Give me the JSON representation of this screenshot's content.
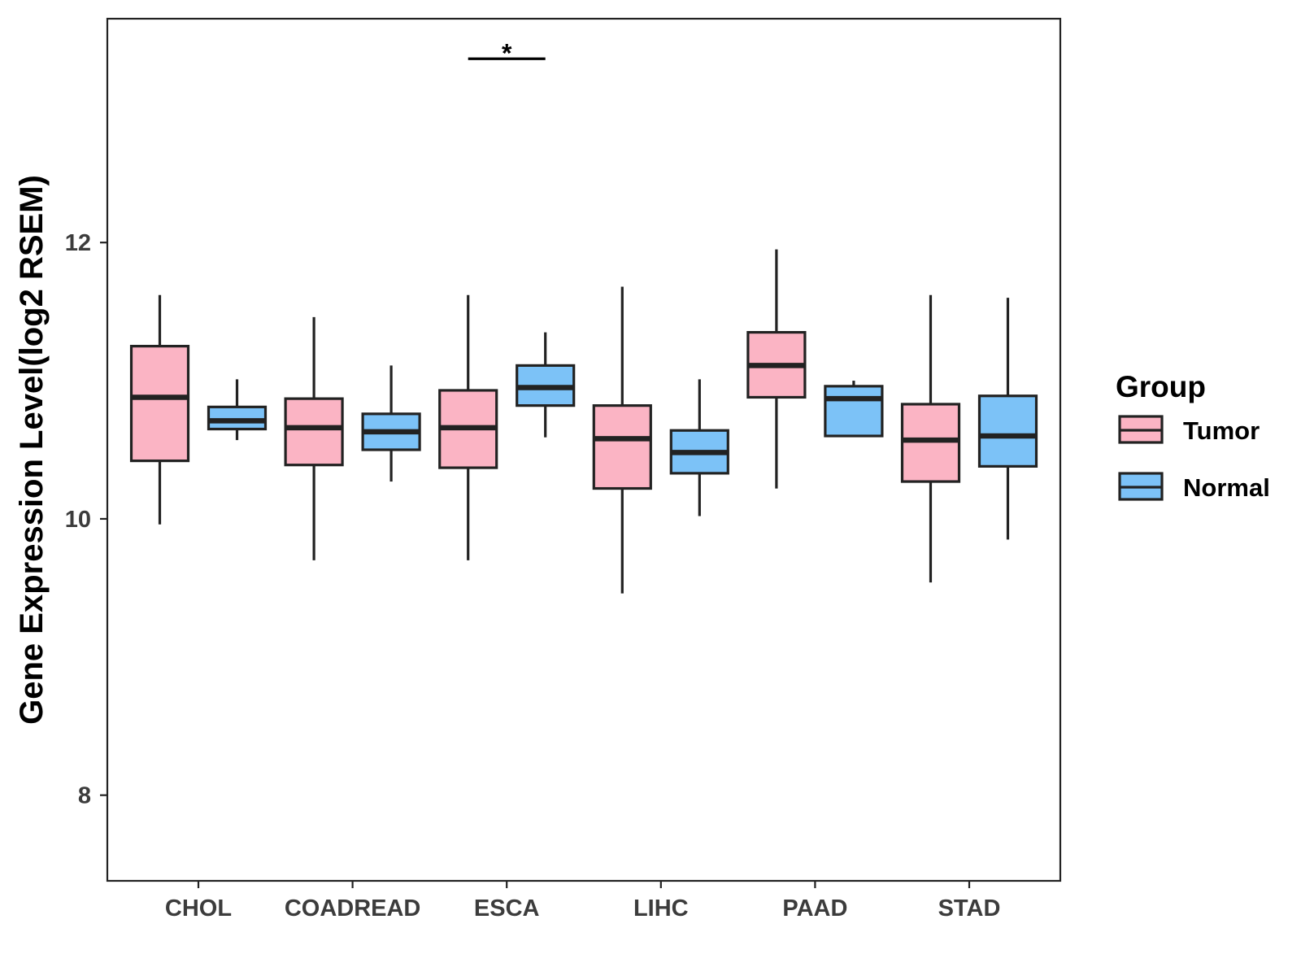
{
  "chart_data": {
    "type": "boxplot",
    "title": "",
    "xlabel": "",
    "ylabel": "Gene Expression Level(log2 RSEM)",
    "ylim": [
      7.38,
      13.62
    ],
    "yticks": [
      8,
      10,
      12
    ],
    "ytick_labels": [
      "8",
      "10",
      "12"
    ],
    "grid": false,
    "categories": [
      "CHOL",
      "COADREAD",
      "ESCA",
      "LIHC",
      "PAAD",
      "STAD"
    ],
    "legend": {
      "title": "Group",
      "position": "right",
      "entries": [
        "Tumor",
        "Normal"
      ]
    },
    "series": [
      {
        "name": "Tumor",
        "color": "#fbb4c4",
        "boxes": [
          {
            "category": "CHOL",
            "whisker_low": 9.96,
            "q1": 10.42,
            "median": 10.88,
            "q3": 11.25,
            "whisker_high": 11.62
          },
          {
            "category": "COADREAD",
            "whisker_low": 9.7,
            "q1": 10.39,
            "median": 10.66,
            "q3": 10.87,
            "whisker_high": 11.46
          },
          {
            "category": "ESCA",
            "whisker_low": 9.7,
            "q1": 10.37,
            "median": 10.66,
            "q3": 10.93,
            "whisker_high": 11.62
          },
          {
            "category": "LIHC",
            "whisker_low": 9.46,
            "q1": 10.22,
            "median": 10.58,
            "q3": 10.82,
            "whisker_high": 11.68
          },
          {
            "category": "PAAD",
            "whisker_low": 10.22,
            "q1": 10.88,
            "median": 11.11,
            "q3": 11.35,
            "whisker_high": 11.95
          },
          {
            "category": "STAD",
            "whisker_low": 9.54,
            "q1": 10.27,
            "median": 10.57,
            "q3": 10.83,
            "whisker_high": 11.62
          }
        ]
      },
      {
        "name": "Normal",
        "color": "#7cc2f7",
        "boxes": [
          {
            "category": "CHOL",
            "whisker_low": 10.57,
            "q1": 10.65,
            "median": 10.71,
            "q3": 10.81,
            "whisker_high": 11.01
          },
          {
            "category": "COADREAD",
            "whisker_low": 10.27,
            "q1": 10.5,
            "median": 10.63,
            "q3": 10.76,
            "whisker_high": 11.11
          },
          {
            "category": "ESCA",
            "whisker_low": 10.59,
            "q1": 10.82,
            "median": 10.95,
            "q3": 11.11,
            "whisker_high": 11.35
          },
          {
            "category": "LIHC",
            "whisker_low": 10.02,
            "q1": 10.33,
            "median": 10.48,
            "q3": 10.64,
            "whisker_high": 11.01
          },
          {
            "category": "PAAD",
            "whisker_low": 10.6,
            "q1": 10.6,
            "median": 10.87,
            "q3": 10.96,
            "whisker_high": 11.0
          },
          {
            "category": "STAD",
            "whisker_low": 9.85,
            "q1": 10.38,
            "median": 10.6,
            "q3": 10.89,
            "whisker_high": 11.6
          }
        ]
      }
    ],
    "annotations": [
      {
        "category": "ESCA",
        "label": "*",
        "y": 13.33
      }
    ]
  }
}
